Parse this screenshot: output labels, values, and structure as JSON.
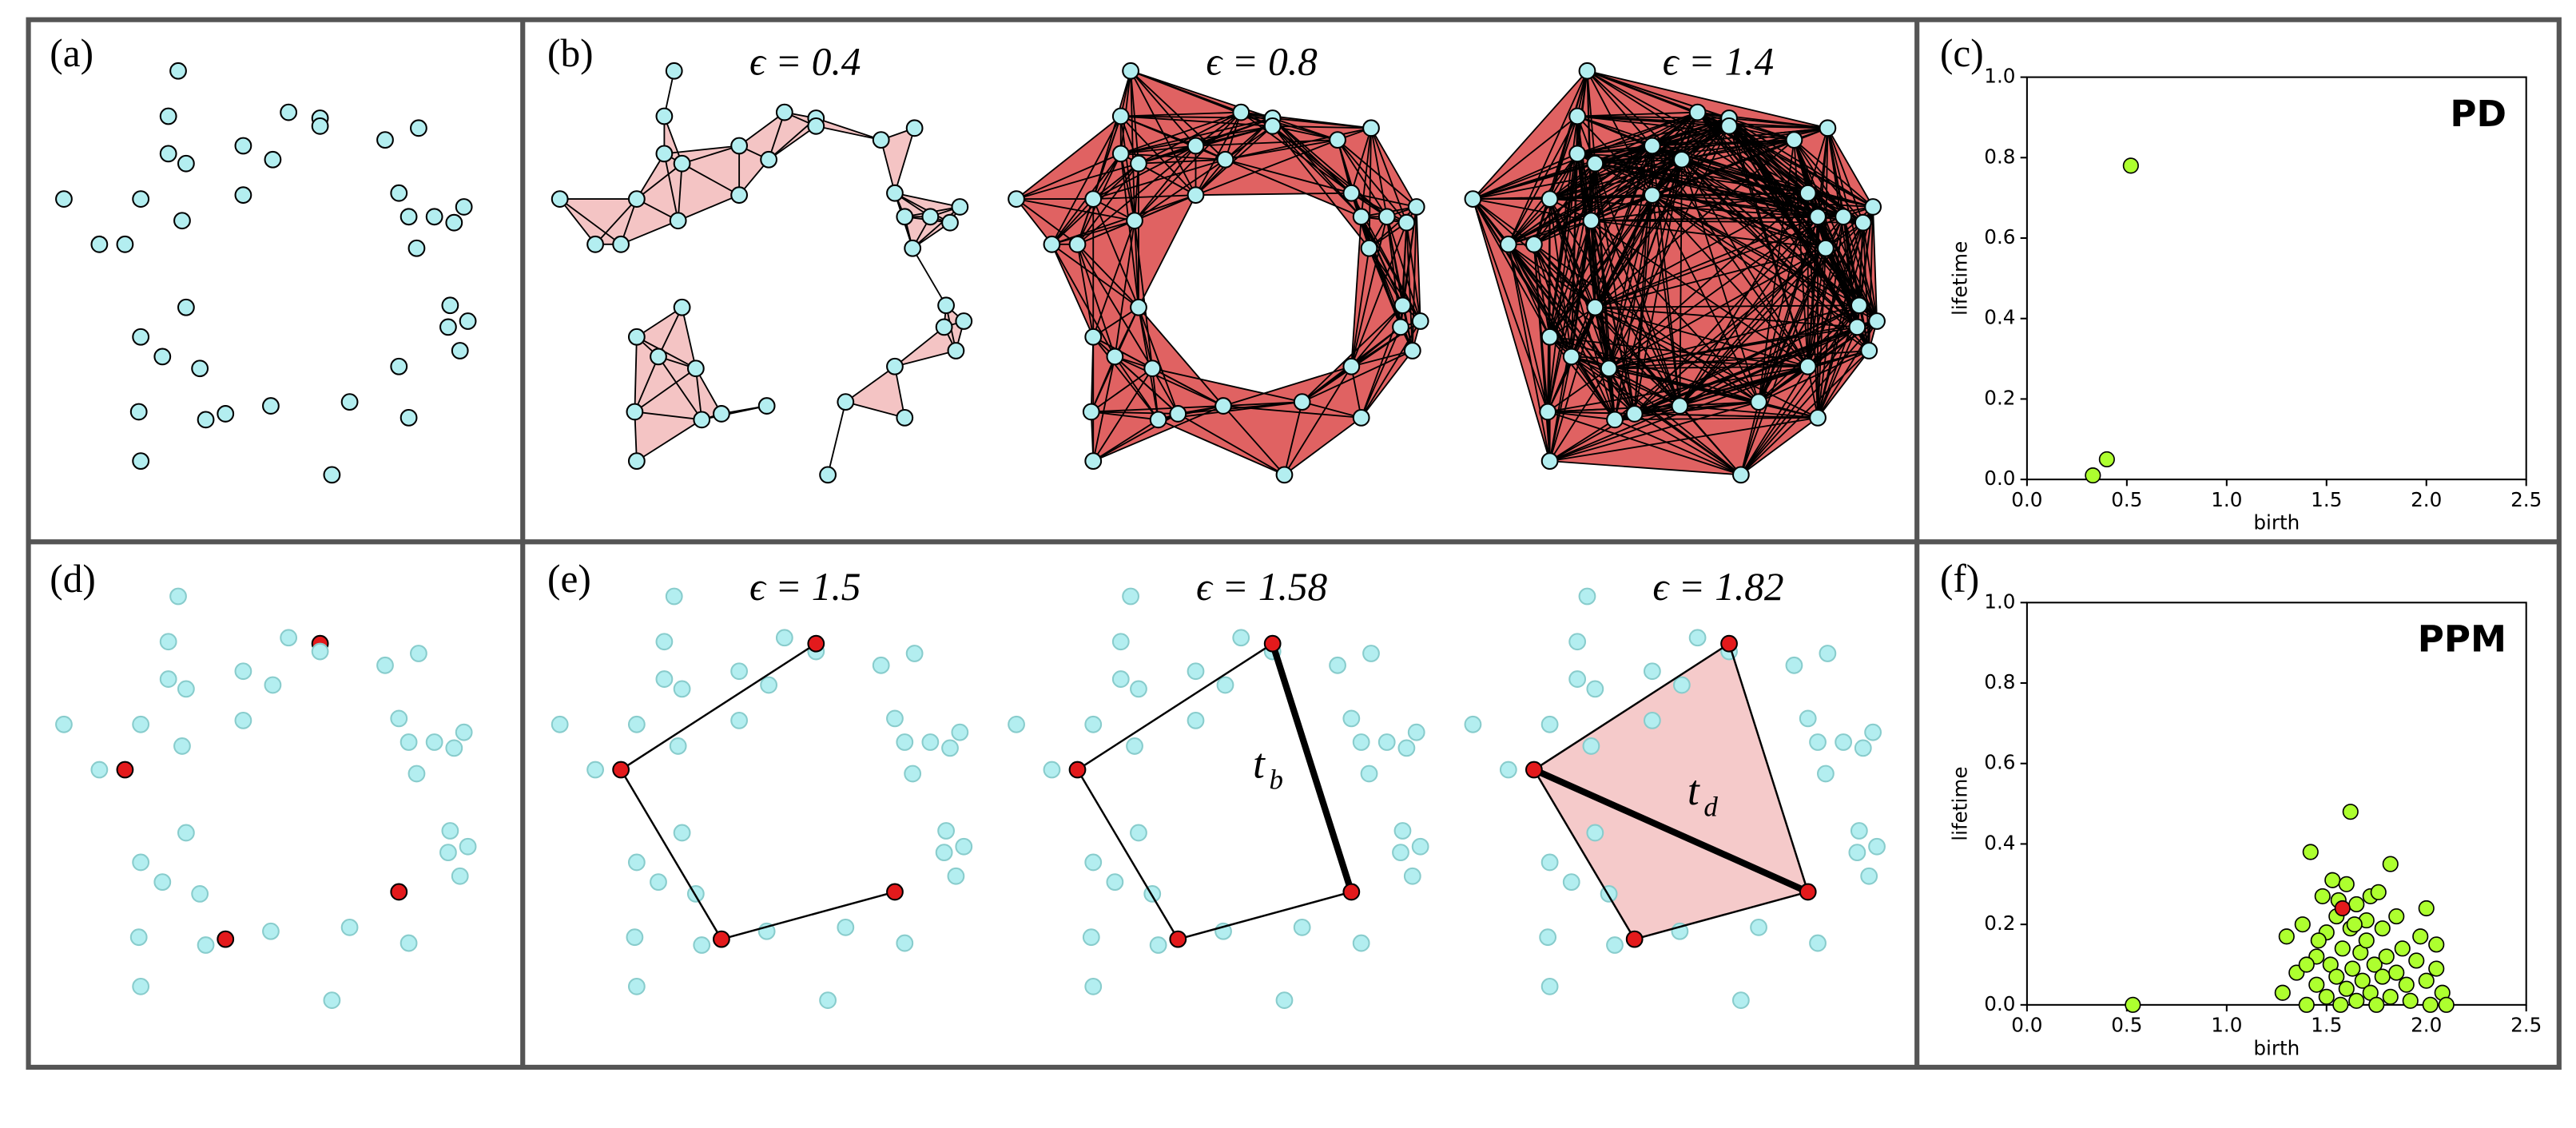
{
  "panel_labels": [
    "(a)",
    "(b)",
    "(c)",
    "(d)",
    "(e)",
    "(f)"
  ],
  "point_cloud": {
    "points": [
      [
        0.76,
        0.26
      ],
      [
        1.32,
        0.47
      ],
      [
        1.48,
        0.5
      ],
      [
        1.48,
        0.54
      ],
      [
        0.71,
        0.49
      ],
      [
        1.09,
        0.64
      ],
      [
        1.24,
        0.71
      ],
      [
        1.81,
        0.61
      ],
      [
        1.98,
        0.55
      ],
      [
        0.71,
        0.68
      ],
      [
        0.8,
        0.73
      ],
      [
        0.18,
        0.91
      ],
      [
        0.57,
        0.91
      ],
      [
        1.09,
        0.89
      ],
      [
        1.88,
        0.88
      ],
      [
        0.78,
        1.02
      ],
      [
        1.93,
        1.0
      ],
      [
        2.06,
        1.0
      ],
      [
        2.21,
        0.95
      ],
      [
        2.16,
        1.03
      ],
      [
        0.36,
        1.14
      ],
      [
        0.49,
        1.14
      ],
      [
        1.97,
        1.16
      ],
      [
        0.8,
        1.46
      ],
      [
        2.14,
        1.45
      ],
      [
        2.23,
        1.53
      ],
      [
        0.57,
        1.61
      ],
      [
        2.13,
        1.56
      ],
      [
        2.19,
        1.68
      ],
      [
        0.68,
        1.71
      ],
      [
        0.87,
        1.77
      ],
      [
        1.88,
        1.76
      ],
      [
        0.56,
        1.99
      ],
      [
        1.0,
        2.0
      ],
      [
        0.9,
        2.03
      ],
      [
        1.23,
        1.96
      ],
      [
        1.63,
        1.94
      ],
      [
        1.93,
        2.02
      ],
      [
        0.57,
        2.24
      ],
      [
        1.54,
        2.31
      ]
    ],
    "highlight": [
      21,
      33,
      31,
      2
    ]
  },
  "filtration_b": [
    {
      "epsilon": 0.4,
      "label": "ϵ = 0.4",
      "color": "#f4c4c4"
    },
    {
      "epsilon": 0.8,
      "label": "ϵ = 0.8",
      "color": "#e06262"
    },
    {
      "epsilon": 1.4,
      "label": "ϵ = 1.4",
      "color": "#e06262"
    }
  ],
  "filtration_e": [
    {
      "label": "ϵ = 1.5",
      "edges": [
        [
          21,
          2
        ],
        [
          21,
          33
        ],
        [
          33,
          31
        ]
      ],
      "triangles": []
    },
    {
      "label": "ϵ = 1.58",
      "edges": [
        [
          21,
          2
        ],
        [
          21,
          33
        ],
        [
          33,
          31
        ]
      ],
      "triangles": [],
      "thick": [
        31,
        2
      ],
      "thick_label": {
        "base": "t",
        "sub": "b"
      }
    },
    {
      "label": "ϵ = 1.82",
      "edges": [
        [
          21,
          2
        ],
        [
          2,
          31
        ],
        [
          31,
          33
        ],
        [
          33,
          21
        ]
      ],
      "triangles": [
        [
          21,
          2,
          31
        ],
        [
          21,
          33,
          31
        ]
      ],
      "thick": [
        21,
        31
      ],
      "thick_label": {
        "base": "t",
        "sub": "d"
      }
    }
  ],
  "triangle_color": "#f4c4c4",
  "chart_data": [
    {
      "type": "scatter",
      "label": "PD",
      "xlabel": "birth",
      "ylabel": "lifetime",
      "xlim": [
        0,
        2.5
      ],
      "ylim": [
        0,
        1
      ],
      "xticks": [
        {
          "value": 0,
          "label": "0.0"
        },
        0.5,
        {
          "value": 1,
          "label": "1.0"
        },
        1.5,
        {
          "value": 2,
          "label": "2.0"
        },
        2.5
      ],
      "yticks": [
        {
          "value": 0,
          "label": "0.0"
        },
        0.2,
        0.4,
        0.6,
        0.8,
        {
          "value": 1,
          "label": "1.0"
        }
      ],
      "series": [
        {
          "color": "#adff2f",
          "x": [
            0.33,
            0.4,
            0.52
          ],
          "y": [
            0.01,
            0.05,
            0.78
          ]
        }
      ]
    },
    {
      "type": "scatter",
      "label": "PPM",
      "xlabel": "birth",
      "ylabel": "lifetime",
      "xlim": [
        0,
        2.5
      ],
      "ylim": [
        0,
        1
      ],
      "xticks": [
        {
          "value": 0,
          "label": "0.0"
        },
        0.5,
        {
          "value": 1,
          "label": "1.0"
        },
        1.5,
        {
          "value": 2,
          "label": "2.0"
        },
        2.5
      ],
      "yticks": [
        {
          "value": 0,
          "label": "0.0"
        },
        0.2,
        0.4,
        0.6,
        0.8,
        {
          "value": 1,
          "label": "1.0"
        }
      ],
      "series": [
        {
          "color": "#adff2f",
          "x": [
            0.53,
            1.3,
            1.28,
            1.35,
            1.38,
            1.4,
            1.42,
            1.45,
            1.45,
            1.48,
            1.5,
            1.5,
            1.52,
            1.53,
            1.55,
            1.55,
            1.57,
            1.58,
            1.6,
            1.6,
            1.62,
            1.62,
            1.63,
            1.65,
            1.65,
            1.67,
            1.68,
            1.7,
            1.7,
            1.72,
            1.72,
            1.74,
            1.75,
            1.76,
            1.78,
            1.78,
            1.8,
            1.82,
            1.82,
            1.85,
            1.85,
            1.88,
            1.9,
            1.92,
            1.95,
            1.97,
            2.0,
            2.0,
            2.02,
            2.05,
            2.05,
            2.08,
            2.1,
            1.4,
            1.46,
            1.56,
            1.64
          ],
          "y": [
            0.0,
            0.17,
            0.03,
            0.08,
            0.2,
            0.0,
            0.38,
            0.12,
            0.05,
            0.27,
            0.18,
            0.02,
            0.1,
            0.31,
            0.22,
            0.07,
            0.0,
            0.14,
            0.3,
            0.04,
            0.48,
            0.19,
            0.09,
            0.25,
            0.01,
            0.13,
            0.06,
            0.21,
            0.16,
            0.27,
            0.03,
            0.1,
            0.0,
            0.28,
            0.19,
            0.07,
            0.12,
            0.35,
            0.02,
            0.22,
            0.08,
            0.14,
            0.05,
            0.01,
            0.11,
            0.17,
            0.24,
            0.06,
            0.0,
            0.15,
            0.09,
            0.03,
            0.0,
            0.1,
            0.16,
            0.26,
            0.2
          ]
        },
        {
          "color": "#e31a1c",
          "x": [
            1.58
          ],
          "y": [
            0.24
          ]
        }
      ]
    }
  ]
}
